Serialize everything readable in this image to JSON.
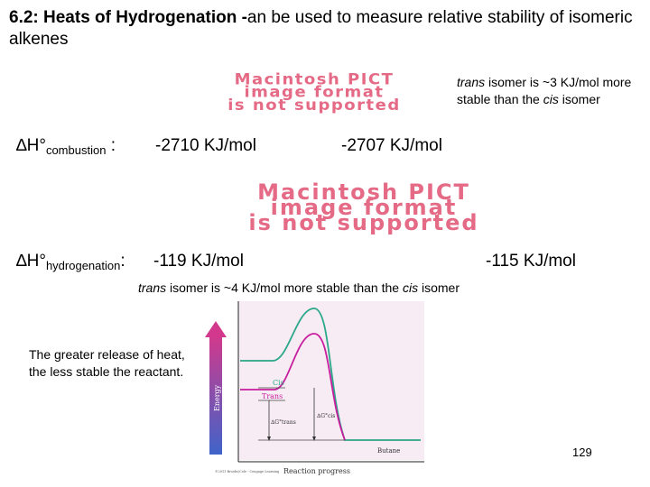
{
  "title": {
    "bold": "6.2: Heats of Hydrogenation -",
    "rest": "an be used to measure relative stability of isomeric alkenes"
  },
  "pict_placeholder_1": [
    "Macintosh PICT",
    "image format",
    "is not supported"
  ],
  "pict_placeholder_2": [
    "Macintosh PICT",
    "image format",
    "is not supported"
  ],
  "note_combustion": {
    "trans": "trans",
    "text1": " isomer is ~3 KJ/mol more stable than the ",
    "cis": "cis",
    "text2": " isomer"
  },
  "combustion": {
    "delta": "∆H°",
    "sub": "combustion",
    "colon": " :",
    "value_left": "-2710 KJ/mol",
    "value_right": "-2707 KJ/mol"
  },
  "hydrogenation": {
    "delta": "∆H°",
    "sub": "hydrogenation",
    "colon": ":",
    "value_left": "-119 KJ/mol",
    "value_right": "-115 KJ/mol"
  },
  "note_hydrogenation": {
    "trans": "trans",
    "text1": " isomer is ~4 KJ/mol more stable than the ",
    "cis": "cis",
    "text2": " isomer"
  },
  "greater_release": "The greater release of heat, the less stable the reactant.",
  "diagram": {
    "energy_label": "Energy",
    "cis_label": "Cis",
    "trans_label": "Trans",
    "dg_trans": "∆G°trans",
    "dg_cis": "∆G°cis",
    "butane_label": "Butane",
    "xaxis_label": "Reaction progress",
    "copyright": "©2011 Brooks/Cole - Cengage Learning",
    "colors": {
      "cis_curve": "#2aa889",
      "trans_curve": "#c81d9e",
      "arrow_top": "#d2398c",
      "arrow_bottom": "#3f64c9"
    }
  },
  "page_number": "129"
}
